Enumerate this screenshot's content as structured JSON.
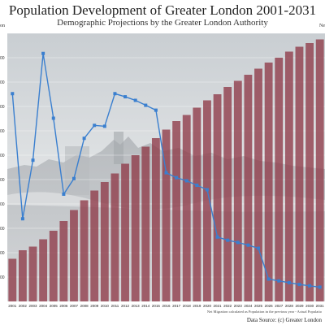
{
  "chart_data": {
    "type": "bar",
    "title": "Population Development of Greater London 2001-2031",
    "subtitle": "Demographic Projections by the Greater London Authority",
    "left_axis_label": "on",
    "right_axis_label": "Ne",
    "footnote": "Net Migration calculated as Population in the previous year - Actual Populatio",
    "source": "Data Source: (c) Greater London",
    "categories": [
      "2001",
      "2002",
      "2003",
      "2004",
      "2005",
      "2006",
      "2007",
      "2008",
      "2009",
      "2010",
      "2011",
      "2012",
      "2013",
      "2014",
      "2015",
      "2016",
      "2017",
      "2018",
      "2019",
      "2020",
      "2021",
      "2022",
      "2023",
      "2024",
      "2025",
      "2026",
      "2027",
      "2028",
      "2029",
      "2030",
      "2031"
    ],
    "y_tick_labels": [
      "",
      "00",
      "00",
      "00",
      "00",
      "00",
      "00",
      "00",
      "00",
      "00",
      "00",
      ""
    ],
    "series": [
      {
        "type": "bar",
        "axis": "left",
        "values": [
          0.5,
          1.2,
          1.5,
          2.1,
          2.8,
          3.6,
          4.5,
          5.3,
          6.1,
          6.8,
          7.5,
          8.3,
          9.0,
          9.7,
          10.4,
          11.1,
          11.8,
          12.3,
          12.9,
          13.5,
          14.0,
          14.6,
          15.1,
          15.6,
          16.1,
          16.6,
          17.0,
          17.5,
          17.9,
          18.2,
          18.5
        ],
        "ylim": [
          -3,
          19
        ]
      },
      {
        "type": "line",
        "axis": "right",
        "values": [
          31.5,
          3.5,
          16.6,
          40.5,
          26.0,
          9.0,
          12.5,
          21.5,
          24.4,
          24.2,
          31.5,
          30.8,
          30.0,
          28.9,
          27.8,
          13.8,
          12.7,
          12.0,
          11.0,
          10.0,
          -0.6,
          -1.3,
          -1.8,
          -2.4,
          -3.1,
          -10.0,
          -10.4,
          -10.8,
          -11.2,
          -11.5,
          -11.8
        ],
        "ylim": [
          -15,
          45
        ]
      }
    ],
    "colors": {
      "bar": "#8e3a48",
      "line": "#3a7fcf",
      "photo_sky": "#d7dbde"
    },
    "grid": true,
    "legend": "none"
  }
}
